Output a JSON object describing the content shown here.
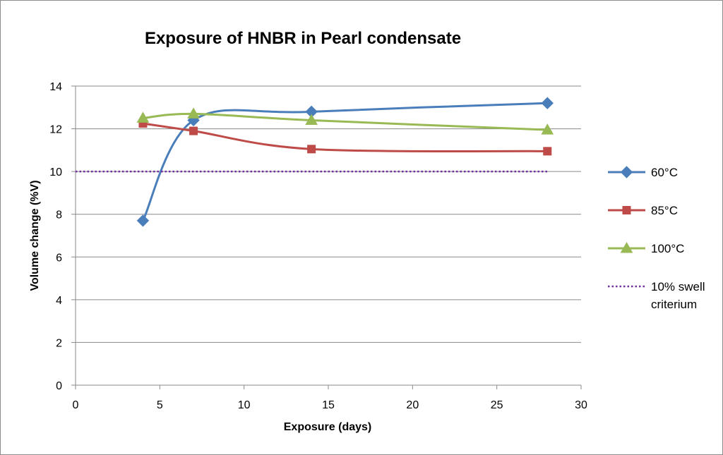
{
  "chart_data": {
    "type": "scatter",
    "title": "Exposure of HNBR in Pearl condensate",
    "xlabel": "Exposure (days)",
    "ylabel": "Volume change (%V)",
    "xlim": [
      0,
      30
    ],
    "ylim": [
      0,
      14
    ],
    "xticks": [
      0,
      5,
      10,
      15,
      20,
      25,
      30
    ],
    "yticks": [
      0,
      2,
      4,
      6,
      8,
      10,
      12,
      14
    ],
    "grid": "horizontal",
    "legend_position": "right",
    "series": [
      {
        "name": "60°C",
        "color": "#4a7ebb",
        "marker": "diamond",
        "smooth": true,
        "points": [
          [
            4,
            7.7
          ],
          [
            7,
            12.4
          ],
          [
            14,
            12.8
          ],
          [
            28,
            13.2
          ]
        ]
      },
      {
        "name": "85°C",
        "color": "#be4b48",
        "marker": "square",
        "smooth": true,
        "points": [
          [
            4,
            12.25
          ],
          [
            7,
            11.9
          ],
          [
            14,
            11.05
          ],
          [
            28,
            10.95
          ]
        ]
      },
      {
        "name": "100°C",
        "color": "#98b954",
        "marker": "triangle",
        "smooth": true,
        "points": [
          [
            4,
            12.5
          ],
          [
            7,
            12.7
          ],
          [
            14,
            12.4
          ],
          [
            28,
            11.95
          ]
        ]
      },
      {
        "name": "10% swell criterium",
        "color": "#7030a0",
        "marker": "none",
        "dotted": true,
        "points": [
          [
            0,
            10
          ],
          [
            28,
            10
          ]
        ]
      }
    ]
  }
}
